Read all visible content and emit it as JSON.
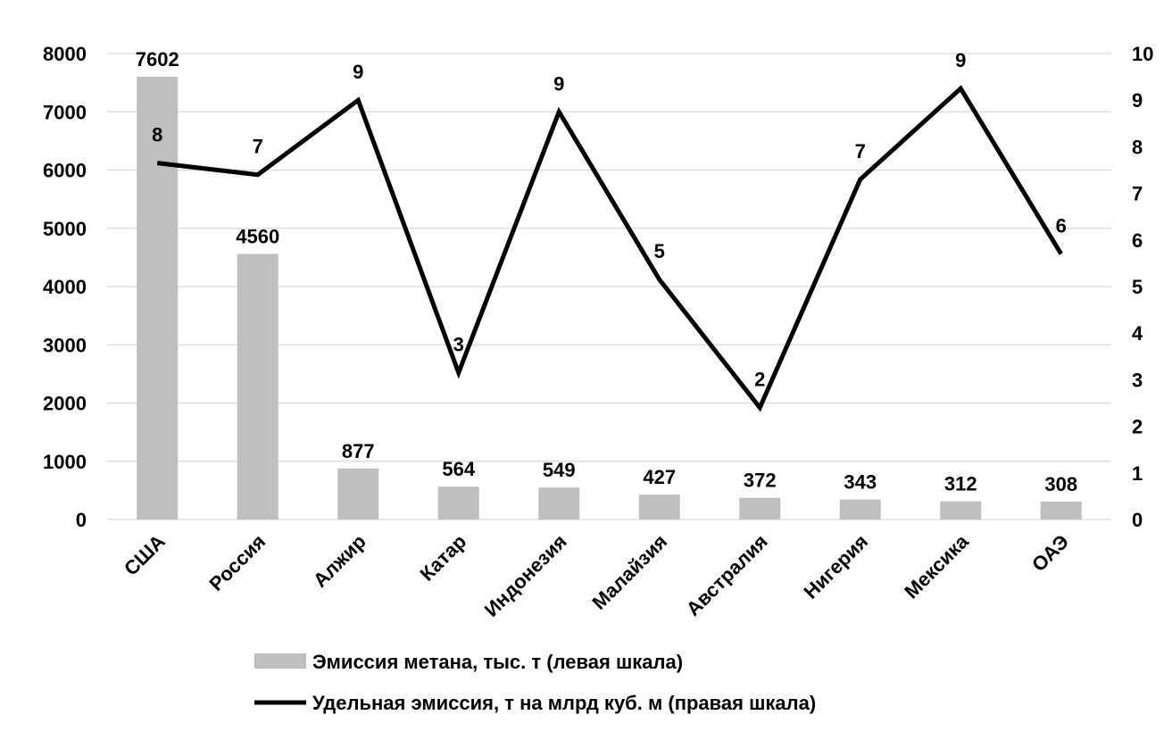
{
  "chart_data": {
    "type": "bar",
    "categories": [
      "США",
      "Россия",
      "Алжир",
      "Катар",
      "Индонезия",
      "Малайзия",
      "Австралия",
      "Нигерия",
      "Мексика",
      "ОАЭ"
    ],
    "series": [
      {
        "name": "Эмиссия метана, тыс. т (левая шкала)",
        "type": "bar",
        "axis": "left",
        "color": "#bfbfbf",
        "values": [
          7602,
          4560,
          877,
          564,
          549,
          427,
          372,
          343,
          312,
          308
        ],
        "labels": [
          "7602",
          "4560",
          "877",
          "564",
          "549",
          "427",
          "372",
          "343",
          "312",
          "308"
        ]
      },
      {
        "name": "Удельная эмиссия, т на млрд куб. м (правая шкала)",
        "type": "line",
        "axis": "right",
        "color": "#000000",
        "values": [
          7.65,
          7.4,
          9.0,
          3.15,
          8.75,
          5.15,
          2.4,
          7.3,
          9.25,
          5.7
        ],
        "labels": [
          "8",
          "7",
          "9",
          "3",
          "9",
          "5",
          "2",
          "7",
          "9",
          "6"
        ]
      }
    ],
    "y_left": {
      "ylim": [
        0,
        8000
      ],
      "ticks": [
        "0",
        "1000",
        "2000",
        "3000",
        "4000",
        "5000",
        "6000",
        "7000",
        "8000"
      ]
    },
    "y_right": {
      "ylim": [
        0,
        10
      ],
      "ticks": [
        "0",
        "1",
        "2",
        "3",
        "4",
        "5",
        "6",
        "7",
        "8",
        "9",
        "10"
      ]
    },
    "grid": true,
    "legend": "bottom",
    "title": "",
    "xlabel": "",
    "ylabel": ""
  }
}
